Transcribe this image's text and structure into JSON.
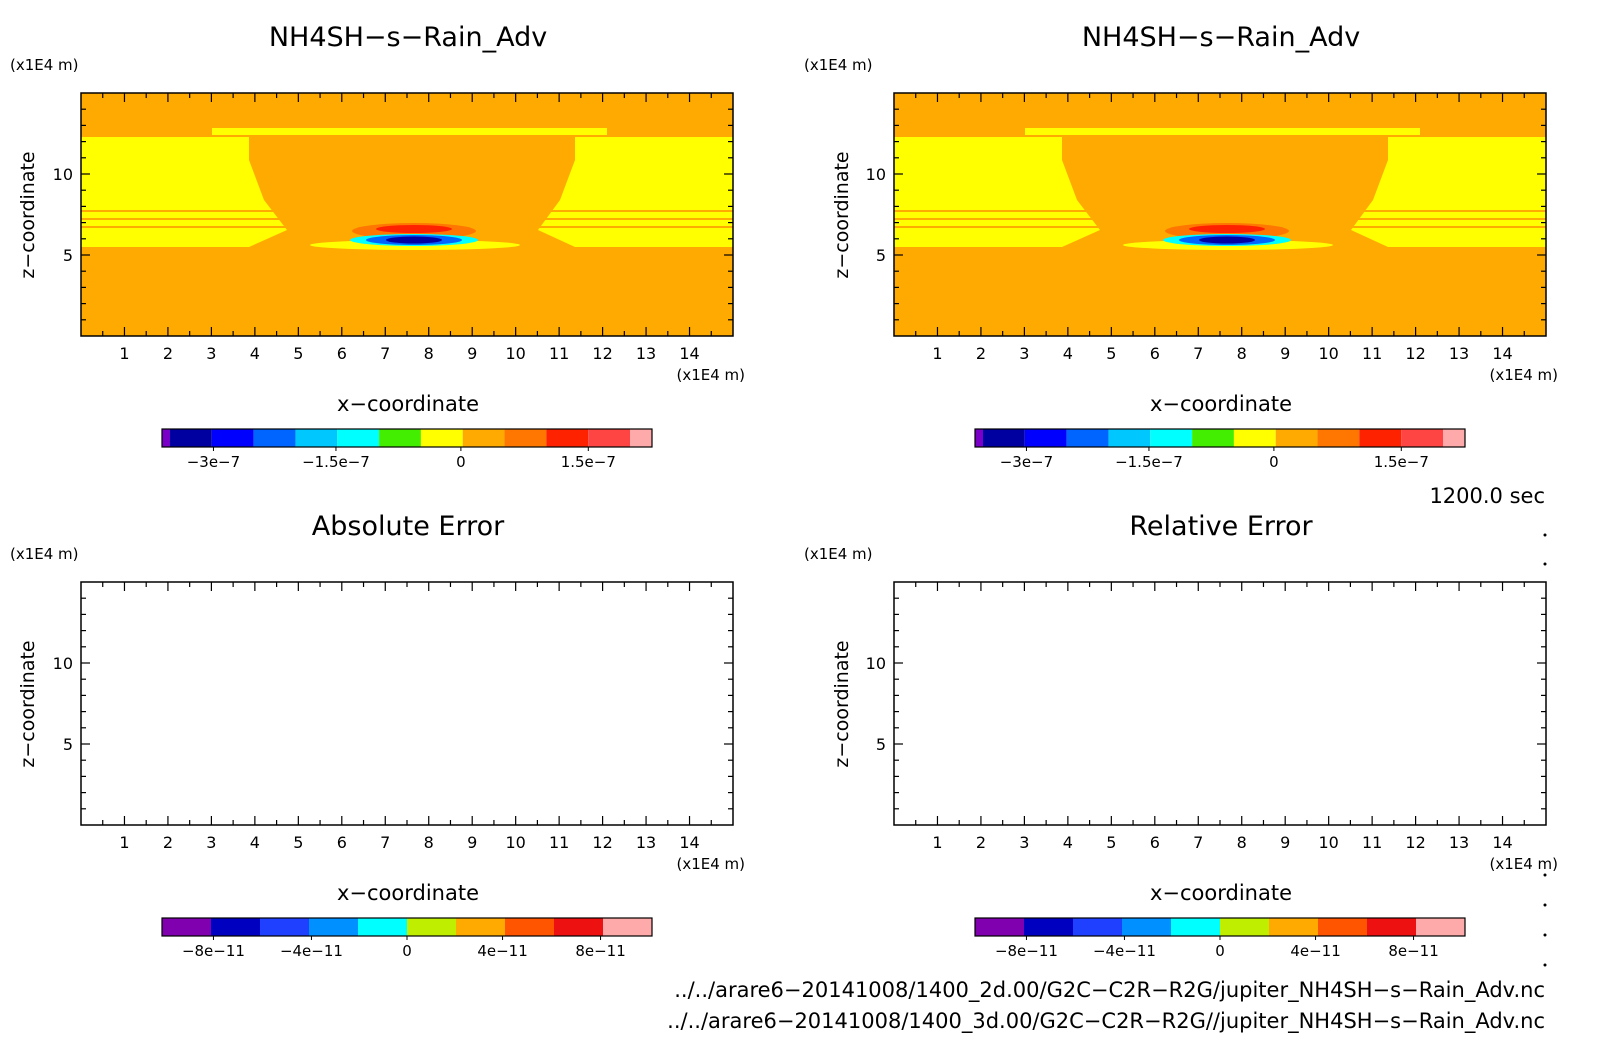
{
  "chart_data": [
    {
      "type": "heatmap",
      "title": "NH4SH−s−Rain_Adv",
      "xlabel": "x−coordinate",
      "ylabel": "z−coordinate",
      "x_unit": "(x1E4 m)",
      "y_unit": "(x1E4 m)",
      "xlim": [
        0,
        15
      ],
      "ylim": [
        0,
        15
      ],
      "x_ticks": [
        "1",
        "2",
        "3",
        "4",
        "5",
        "6",
        "7",
        "8",
        "9",
        "10",
        "11",
        "12",
        "13",
        "14"
      ],
      "y_ticks": [
        "5",
        "10"
      ],
      "field": {
        "background_level": "orange",
        "description_values": {
          "upper_band_z": [
            12,
            15
          ],
          "yellow_regions_z": [
            6.5,
            12.5
          ],
          "negative_core_x": 7.6,
          "negative_core_z": 6,
          "positive_core_x": 7.6,
          "positive_core_z": 6.6
        }
      },
      "colorbar": {
        "tick_labels": [
          "−3e−7",
          "−1.5e−7",
          "0",
          "1.5e−7"
        ],
        "colors": [
          "#7a00c8",
          "#0000a0",
          "#0000ff",
          "#0064ff",
          "#00c8ff",
          "#00ffff",
          "#44ee00",
          "#ffff00",
          "#ffaa00",
          "#ff7700",
          "#ff2200",
          "#ff4444",
          "#ffaaaa"
        ]
      }
    },
    {
      "type": "heatmap",
      "title": "NH4SH−s−Rain_Adv",
      "xlabel": "x−coordinate",
      "ylabel": "z−coordinate",
      "x_unit": "(x1E4 m)",
      "y_unit": "(x1E4 m)",
      "xlim": [
        0,
        15
      ],
      "ylim": [
        0,
        15
      ],
      "x_ticks": [
        "1",
        "2",
        "3",
        "4",
        "5",
        "6",
        "7",
        "8",
        "9",
        "10",
        "11",
        "12",
        "13",
        "14"
      ],
      "y_ticks": [
        "5",
        "10"
      ],
      "colorbar": {
        "tick_labels": [
          "−3e−7",
          "−1.5e−7",
          "0",
          "1.5e−7"
        ]
      }
    },
    {
      "type": "heatmap",
      "title": "Absolute Error",
      "xlabel": "x−coordinate",
      "ylabel": "z−coordinate",
      "x_unit": "(x1E4 m)",
      "y_unit": "(x1E4 m)",
      "xlim": [
        0,
        15
      ],
      "ylim": [
        0,
        15
      ],
      "x_ticks": [
        "1",
        "2",
        "3",
        "4",
        "5",
        "6",
        "7",
        "8",
        "9",
        "10",
        "11",
        "12",
        "13",
        "14"
      ],
      "y_ticks": [
        "5",
        "10"
      ],
      "colorbar": {
        "tick_labels": [
          "−8e−11",
          "−4e−11",
          "0",
          "4e−11",
          "8e−11"
        ],
        "colors": [
          "#8000b0",
          "#0000c0",
          "#2040ff",
          "#0090ff",
          "#00ffff",
          "#c0ee00",
          "#ffaa00",
          "#ff5500",
          "#ee1111",
          "#ffaaaa"
        ]
      }
    },
    {
      "type": "heatmap",
      "title": "Relative Error",
      "xlabel": "x−coordinate",
      "ylabel": "z−coordinate",
      "x_unit": "(x1E4 m)",
      "y_unit": "(x1E4 m)",
      "xlim": [
        0,
        15
      ],
      "ylim": [
        0,
        15
      ],
      "x_ticks": [
        "1",
        "2",
        "3",
        "4",
        "5",
        "6",
        "7",
        "8",
        "9",
        "10",
        "11",
        "12",
        "13",
        "14"
      ],
      "y_ticks": [
        "5",
        "10"
      ],
      "colorbar": {
        "tick_labels": [
          "−8e−11",
          "−4e−11",
          "0",
          "4e−11",
          "8e−11"
        ]
      }
    }
  ],
  "time_label": "1200.0 sec",
  "file_paths": [
    "../../arare6−20141008/1400_2d.00/G2C−C2R−R2G/jupiter_NH4SH−s−Rain_Adv.nc",
    "../../arare6−20141008/1400_3d.00/G2C−C2R−R2G//jupiter_NH4SH−s−Rain_Adv.nc"
  ]
}
